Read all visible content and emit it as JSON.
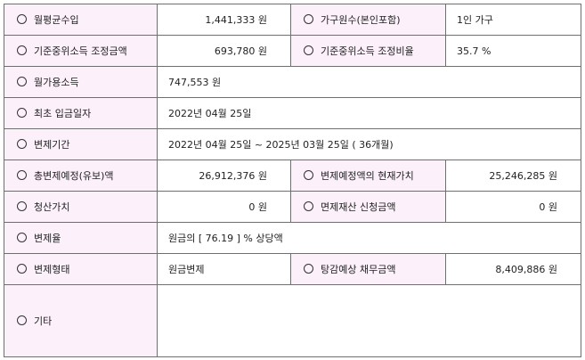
{
  "rows": [
    {
      "l1": "월평균수입",
      "v1": "1,441,333 원",
      "l2": "가구원수(본인포함)",
      "v2": "1인 가구"
    },
    {
      "l1": "기준중위소득 조정금액",
      "v1": "693,780 원",
      "l2": "기준중위소득 조정비율",
      "v2": "35.7 %"
    },
    {
      "l1": "월가용소득",
      "v1": "747,553 원"
    },
    {
      "l1": "최초 입금일자",
      "v1": "2022년 04월 25일"
    },
    {
      "l1": "변제기간",
      "v1": "2022년 04월 25일 ~ 2025년 03월 25일 ( 36개월)"
    },
    {
      "l1": "총변제예정(유보)액",
      "v1": "26,912,376 원",
      "l2": "변제예정액의 현재가치",
      "v2": "25,246,285 원"
    },
    {
      "l1": "청산가치",
      "v1": "0 원",
      "l2": "면제재산 신청금액",
      "v2": "0 원"
    },
    {
      "l1": "변제율",
      "v1": "원금의 [ 76.19 ] % 상당액"
    },
    {
      "l1": "변제형태",
      "v1": "원금변제",
      "l2": "탕감예상 채무금액",
      "v2": "8,409,886 원"
    },
    {
      "l1": "기타",
      "v1": ""
    }
  ]
}
